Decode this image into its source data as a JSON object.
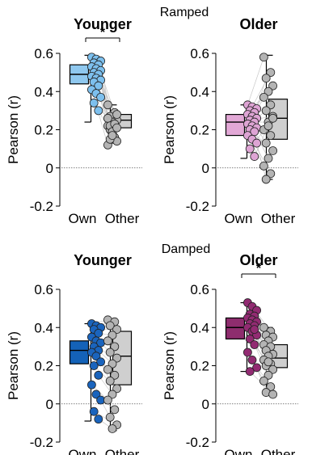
{
  "section_titles": [
    "Ramped",
    "Damped"
  ],
  "chart_data": [
    {
      "type": "boxplot",
      "section": "Ramped",
      "title": "Younger",
      "ylabel": "Pearson (r)",
      "ylim": [
        -0.2,
        0.6
      ],
      "yticks": [
        "-0.2",
        "0",
        "0.2",
        "0.4",
        "0.6"
      ],
      "categories": [
        "Own",
        "Other"
      ],
      "significance": "*",
      "colors": {
        "box": [
          "#8fc8ef",
          "#cfcfcf"
        ],
        "points": [
          "#7dc0ee",
          "#b4b4b4"
        ]
      },
      "series": [
        {
          "name": "Own",
          "q1": 0.44,
          "median": 0.49,
          "q3": 0.54,
          "whisker_low": 0.24,
          "whisker_high": 0.59
        },
        {
          "name": "Other",
          "q1": 0.21,
          "median": 0.25,
          "q3": 0.28,
          "whisker_low": 0.13,
          "whisker_high": 0.33
        }
      ],
      "pairs": [
        [
          0.58,
          0.33
        ],
        [
          0.57,
          0.29
        ],
        [
          0.56,
          0.27
        ],
        [
          0.55,
          0.25
        ],
        [
          0.54,
          0.24
        ],
        [
          0.53,
          0.22
        ],
        [
          0.52,
          0.21
        ],
        [
          0.51,
          0.2
        ],
        [
          0.5,
          0.28
        ],
        [
          0.49,
          0.18
        ],
        [
          0.48,
          0.26
        ],
        [
          0.47,
          0.16
        ],
        [
          0.46,
          0.22
        ],
        [
          0.45,
          0.14
        ],
        [
          0.43,
          0.19
        ],
        [
          0.41,
          0.12
        ],
        [
          0.39,
          0.23
        ],
        [
          0.37,
          0.15
        ],
        [
          0.34,
          0.21
        ],
        [
          0.3,
          0.17
        ]
      ]
    },
    {
      "type": "boxplot",
      "section": "Ramped",
      "title": "Older",
      "ylabel": "Pearson (r)",
      "ylim": [
        -0.2,
        0.6
      ],
      "yticks": [
        "-0.2",
        "0",
        "0.2",
        "0.4",
        "0.6"
      ],
      "categories": [
        "Own",
        "Other"
      ],
      "significance": "",
      "colors": {
        "box": [
          "#e2a8d6",
          "#cfcfcf"
        ],
        "points": [
          "#dea4d4",
          "#b4b4b4"
        ]
      },
      "series": [
        {
          "name": "Own",
          "q1": 0.17,
          "median": 0.24,
          "q3": 0.28,
          "whisker_low": 0.05,
          "whisker_high": 0.33
        },
        {
          "name": "Other",
          "q1": 0.15,
          "median": 0.26,
          "q3": 0.36,
          "whisker_low": -0.06,
          "whisker_high": 0.59
        }
      ],
      "pairs": [
        [
          0.33,
          0.58
        ],
        [
          0.32,
          0.5
        ],
        [
          0.31,
          0.47
        ],
        [
          0.3,
          0.43
        ],
        [
          0.29,
          0.4
        ],
        [
          0.28,
          0.37
        ],
        [
          0.27,
          0.33
        ],
        [
          0.26,
          0.3
        ],
        [
          0.25,
          0.27
        ],
        [
          0.24,
          0.24
        ],
        [
          0.23,
          0.2
        ],
        [
          0.22,
          0.17
        ],
        [
          0.21,
          0.13
        ],
        [
          0.2,
          0.09
        ],
        [
          0.19,
          0.05
        ],
        [
          0.17,
          0.01
        ],
        [
          0.15,
          -0.03
        ],
        [
          0.13,
          -0.06
        ],
        [
          0.1,
          0.26
        ],
        [
          0.06,
          0.22
        ]
      ]
    },
    {
      "type": "boxplot",
      "section": "Damped",
      "title": "Younger",
      "ylabel": "Pearson (r)",
      "ylim": [
        -0.2,
        0.6
      ],
      "yticks": [
        "-0.2",
        "0",
        "0.2",
        "0.4",
        "0.6"
      ],
      "categories": [
        "Own",
        "Other"
      ],
      "significance": "",
      "colors": {
        "box": [
          "#1462b8",
          "#cfcfcf"
        ],
        "points": [
          "#1a64bd",
          "#b4b4b4"
        ]
      },
      "series": [
        {
          "name": "Own",
          "q1": 0.21,
          "median": 0.28,
          "q3": 0.33,
          "whisker_low": -0.09,
          "whisker_high": 0.42
        },
        {
          "name": "Other",
          "q1": 0.1,
          "median": 0.25,
          "q3": 0.38,
          "whisker_low": -0.14,
          "whisker_high": 0.44
        }
      ],
      "pairs": [
        [
          0.42,
          0.44
        ],
        [
          0.41,
          0.43
        ],
        [
          0.4,
          0.41
        ],
        [
          0.39,
          0.39
        ],
        [
          0.37,
          0.36
        ],
        [
          0.35,
          0.33
        ],
        [
          0.33,
          0.3
        ],
        [
          0.32,
          0.27
        ],
        [
          0.3,
          0.24
        ],
        [
          0.28,
          0.21
        ],
        [
          0.27,
          0.18
        ],
        [
          0.25,
          0.15
        ],
        [
          0.22,
          0.12
        ],
        [
          0.2,
          0.08
        ],
        [
          0.15,
          0.05
        ],
        [
          0.1,
          0.02
        ],
        [
          0.05,
          -0.03
        ],
        [
          0.02,
          -0.07
        ],
        [
          -0.04,
          -0.11
        ],
        [
          -0.08,
          -0.13
        ]
      ]
    },
    {
      "type": "boxplot",
      "section": "Damped",
      "title": "Older",
      "ylabel": "Pearson (r)",
      "ylim": [
        -0.2,
        0.6
      ],
      "yticks": [
        "-0.2",
        "0",
        "0.2",
        "0.4",
        "0.6"
      ],
      "categories": [
        "Own",
        "Other"
      ],
      "significance": "*",
      "colors": {
        "box": [
          "#8e2d6e",
          "#cfcfcf"
        ],
        "points": [
          "#922b72",
          "#b4b4b4"
        ]
      },
      "series": [
        {
          "name": "Own",
          "q1": 0.34,
          "median": 0.4,
          "q3": 0.45,
          "whisker_low": 0.17,
          "whisker_high": 0.53
        },
        {
          "name": "Other",
          "q1": 0.19,
          "median": 0.24,
          "q3": 0.31,
          "whisker_low": 0.05,
          "whisker_high": 0.4
        }
      ],
      "pairs": [
        [
          0.53,
          0.4
        ],
        [
          0.51,
          0.38
        ],
        [
          0.49,
          0.36
        ],
        [
          0.47,
          0.35
        ],
        [
          0.46,
          0.33
        ],
        [
          0.45,
          0.31
        ],
        [
          0.44,
          0.3
        ],
        [
          0.43,
          0.28
        ],
        [
          0.42,
          0.26
        ],
        [
          0.41,
          0.25
        ],
        [
          0.4,
          0.23
        ],
        [
          0.38,
          0.21
        ],
        [
          0.36,
          0.2
        ],
        [
          0.34,
          0.18
        ],
        [
          0.31,
          0.15
        ],
        [
          0.27,
          0.12
        ],
        [
          0.23,
          0.09
        ],
        [
          0.19,
          0.06
        ],
        [
          0.17,
          0.05
        ],
        [
          0.39,
          0.22
        ]
      ]
    }
  ]
}
